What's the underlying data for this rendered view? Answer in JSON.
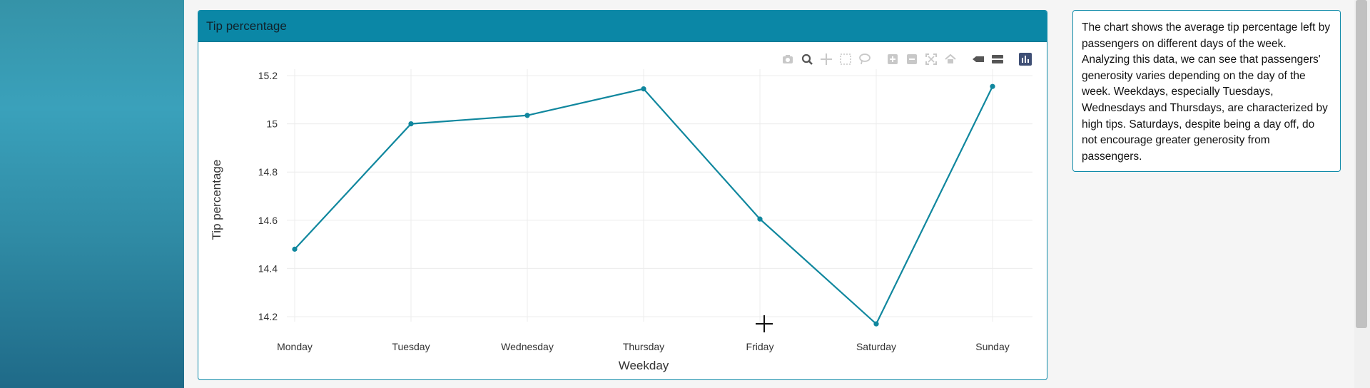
{
  "card": {
    "title": "Tip percentage"
  },
  "description": "The chart shows the average tip percentage left by passengers on different days of the week. Analyzing this data, we can see that passengers' generosity varies depending on the day of the week. Weekdays, especially Tuesdays, Wednesdays and Thursdays, are characterized by high tips. Saturdays, despite being a day off, do not encourage greater generosity from passengers.",
  "modebar_icons": [
    "camera-icon",
    "zoom-icon",
    "pan-icon",
    "box-select-icon",
    "lasso-icon",
    "zoom-in-icon",
    "zoom-out-icon",
    "autoscale-icon",
    "reset-axes-icon",
    "hover-closest-icon",
    "hover-compare-icon",
    "plotly-logo-icon"
  ],
  "colors": {
    "accent": "#0b87a6",
    "line": "#10879e",
    "sidebar": "#3aa1bb"
  },
  "chart_data": {
    "type": "line",
    "categories": [
      "Monday",
      "Tuesday",
      "Wednesday",
      "Thursday",
      "Friday",
      "Saturday",
      "Sunday"
    ],
    "values": [
      14.48,
      15.0,
      15.035,
      15.145,
      14.605,
      14.17,
      15.155
    ],
    "xlabel": "Weekday",
    "ylabel": "Tip percentage",
    "yticks": [
      "14.2",
      "14.4",
      "14.6",
      "14.8",
      "15",
      "15.2"
    ],
    "ylim": [
      14.15,
      15.22
    ],
    "grid": true
  }
}
